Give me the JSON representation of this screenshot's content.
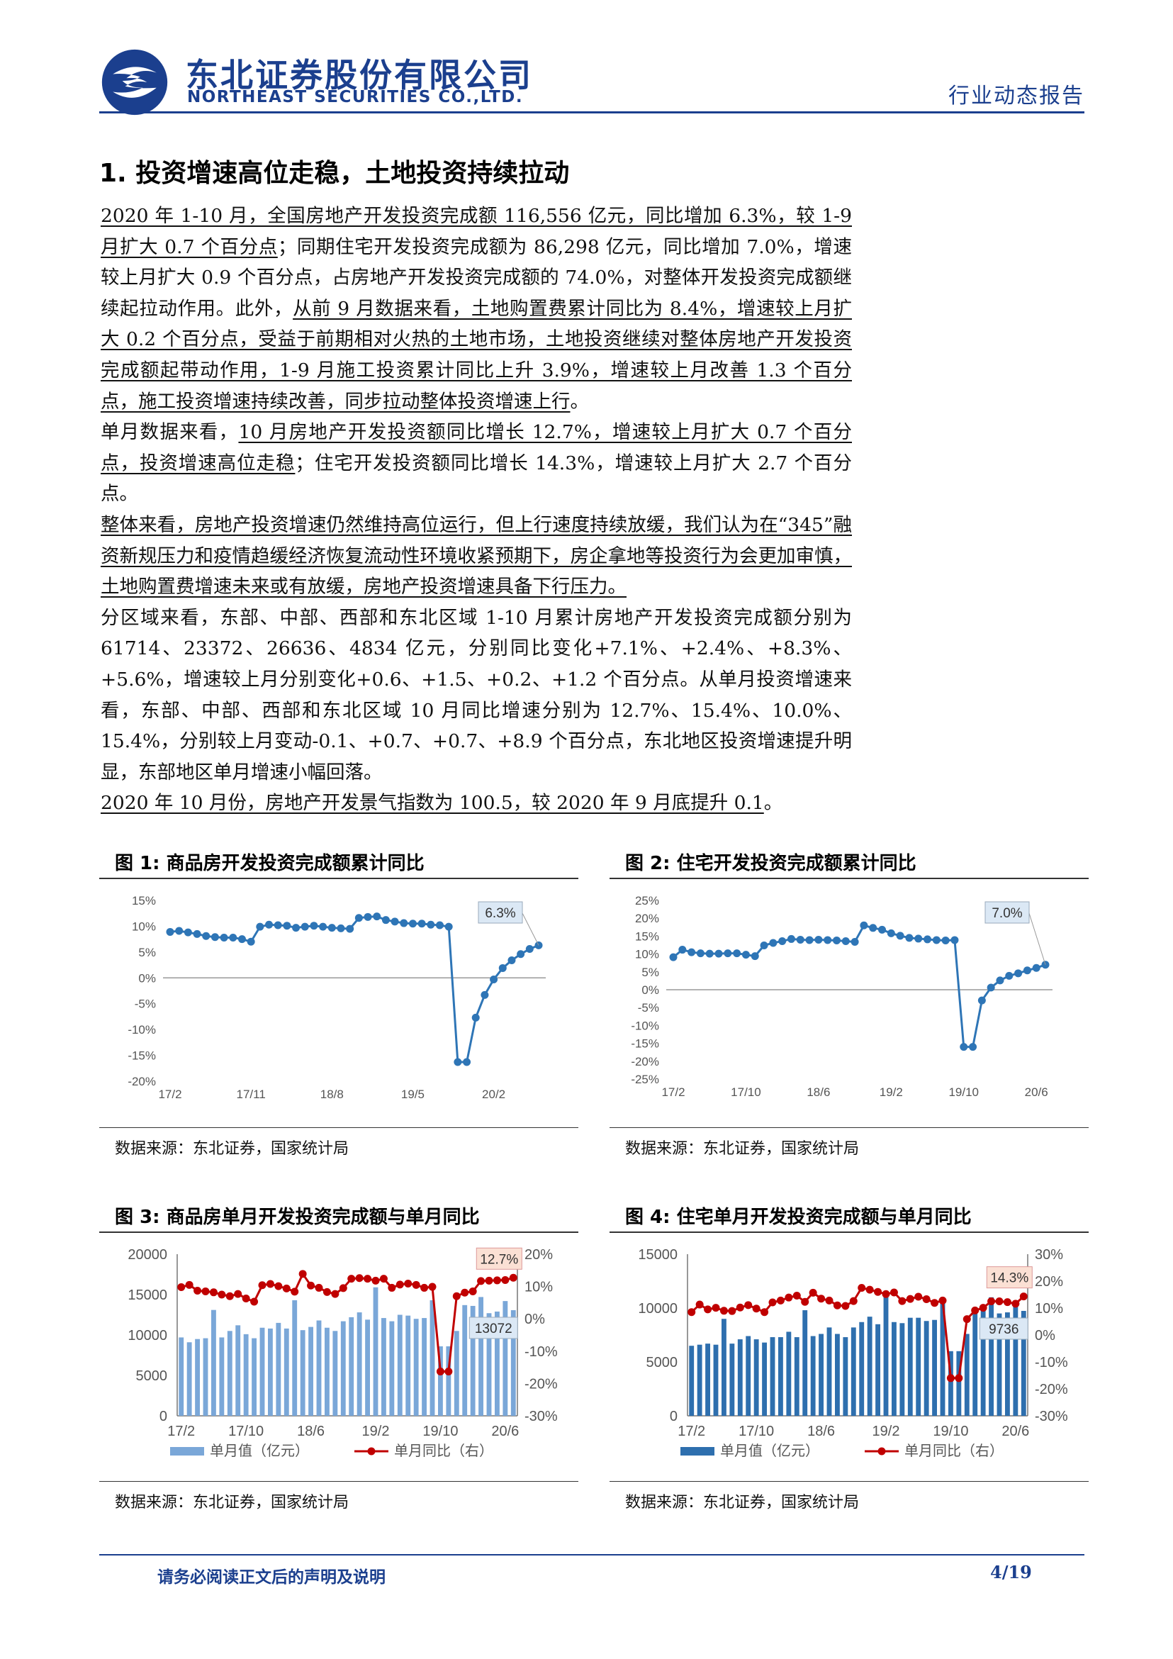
{
  "header": {
    "company_cn": "东北证券股份有限公司",
    "company_en": "NORTHEAST SECURITIES CO.,LTD.",
    "report_type": "行业动态报告",
    "brand_color": "#1b3f8e"
  },
  "section": {
    "title": "1.  投资增速高位走稳，土地投资持续拉动"
  },
  "paragraphs": {
    "p1_u1": "2020 年 1-10 月，全国房地产开发投资完成额 116,556 亿元，同比增加 6.3%，较 1-9 月扩大 0.7 个百分点",
    "p1_t1": "；同期住宅开发投资完成额为 86,298 亿元，同比增加 7.0%，增速较上月扩大 0.9 个百分点，占房地产开发投资完成额的 74.0%，对整体开发投资完成额继续起拉动作用。此外，",
    "p1_u2": "从前 9 月数据来看，土地购置费累计同比为 8.4%，增速较上月扩大 0.2 个百分点，受益于前期相对火热的土地市场，土地投资继续对整体房地产开发投资完成额起带动作用，1-9 月施工投资累计同比上升 3.9%，增速较上月改善 1.3 个百分点，施工投资增速持续改善，同步拉动整体投资增速上行",
    "p1_t2": "。",
    "p2_t1": "单月数据来看，",
    "p2_u1": "10 月房地产开发投资额同比增长 12.7%，增速较上月扩大 0.7 个百分点，投资增速高位走稳",
    "p2_t2": "；住宅开发投资额同比增长 14.3%，增速较上月扩大 2.7 个百分点。",
    "p3_u1": "整体来看，房地产投资增速仍然维持高位运行，但上行速度持续放缓，我们认为在“345”融资新规压力和疫情趋缓经济恢复流动性环境收紧预期下，房企拿地等投资行为会更加审慎，土地购置费增速未来或有放缓，房地产投资增速具备下行压力。",
    "p4": "分区域来看，东部、中部、西部和东北区域 1-10 月累计房地产开发投资完成额分别为 61714、23372、26636、4834 亿元，分别同比变化+7.1%、+2.4%、+8.3%、+5.6%，增速较上月分别变化+0.6、+1.5、+0.2、+1.2 个百分点。从单月投资增速来看，东部、中部、西部和东北区域 10 月同比增速分别为 12.7%、15.4%、10.0%、15.4%，分别较上月变动-0.1、+0.7、+0.7、+8.9 个百分点，东北地区投资增速提升明显，东部地区单月增速小幅回落。",
    "p5_u1": "2020 年 10 月份，房地产开发景气指数为 100.5，较 2020 年 9 月底提升 0.1",
    "p5_t1": "。"
  },
  "figures": [
    {
      "title": "图 1:  商品房开发投资完成额累计同比",
      "source": "数据来源：东北证券，国家统计局"
    },
    {
      "title": "图 2:  住宅开发投资完成额累计同比",
      "source": "数据来源：东北证券，国家统计局"
    },
    {
      "title": "图 3:  商品房单月开发投资完成额与单月同比",
      "source": "数据来源：东北证券，国家统计局"
    },
    {
      "title": "图 4:  住宅单月开发投资完成额与单月同比",
      "source": "数据来源：东北证券，国家统计局"
    }
  ],
  "chart_data": [
    {
      "type": "line",
      "yticks": [
        "15%",
        "10%",
        "5%",
        "0%",
        "-5%",
        "-10%",
        "-15%",
        "-20%"
      ],
      "ylim": [
        -20,
        15
      ],
      "xticks": [
        "17/2",
        "17/11",
        "18/8",
        "19/5",
        "20/2"
      ],
      "callout": "6.3%",
      "series": [
        {
          "color": "#2e75b6",
          "values": [
            8.9,
            9.1,
            8.8,
            8.5,
            8.1,
            7.9,
            7.8,
            7.8,
            7.5,
            7.0,
            9.9,
            10.3,
            10.2,
            10.1,
            9.7,
            9.9,
            10.1,
            9.9,
            9.7,
            9.6,
            9.5,
            11.6,
            11.8,
            11.9,
            11.2,
            10.9,
            10.6,
            10.5,
            10.5,
            10.3,
            10.2,
            9.9,
            -16.3,
            -16.3,
            -7.7,
            -3.3,
            -0.3,
            1.9,
            3.4,
            4.6,
            5.6,
            6.3
          ]
        }
      ]
    },
    {
      "type": "line",
      "yticks": [
        "25%",
        "20%",
        "15%",
        "10%",
        "5%",
        "0%",
        "-5%",
        "-10%",
        "-15%",
        "-20%",
        "-25%"
      ],
      "ylim": [
        -25,
        25
      ],
      "xticks": [
        "17/2",
        "17/10",
        "18/6",
        "19/2",
        "19/10",
        "20/6"
      ],
      "callout": "7.0%",
      "series": [
        {
          "color": "#2e75b6",
          "values": [
            9.1,
            11.2,
            10.5,
            10.2,
            10.1,
            10.1,
            10.2,
            10.2,
            9.8,
            9.4,
            12.4,
            13.1,
            13.6,
            14.2,
            14.0,
            13.9,
            14.0,
            13.9,
            13.8,
            13.6,
            13.4,
            18.0,
            17.3,
            16.8,
            15.8,
            15.1,
            14.5,
            14.3,
            14.1,
            13.9,
            13.8,
            13.9,
            -16.0,
            -16.0,
            -3.0,
            0.6,
            2.6,
            3.9,
            4.6,
            5.4,
            6.1,
            7.0
          ]
        }
      ]
    },
    {
      "type": "bar",
      "yticks_left": [
        "20000",
        "15000",
        "10000",
        "5000",
        "0"
      ],
      "yticks_right": [
        "20%",
        "10%",
        "0%",
        "-10%",
        "-20%",
        "-30%"
      ],
      "ylim_left": [
        0,
        20000
      ],
      "ylim_right": [
        -30,
        20
      ],
      "xticks": [
        "17/2",
        "17/10",
        "18/6",
        "19/2",
        "19/10",
        "20/6"
      ],
      "legend": [
        "单月值（亿元）",
        "单月同比（右）"
      ],
      "callout_line": "12.7%",
      "callout_bar": "13072",
      "series": [
        {
          "name": "单月值（亿元）",
          "color": "#7aa7d8",
          "values": [
            9700,
            9100,
            9500,
            9600,
            13100,
            9700,
            10500,
            11200,
            10100,
            9600,
            10900,
            10800,
            11500,
            10800,
            14300,
            10600,
            11000,
            11800,
            10900,
            10500,
            11700,
            12200,
            12800,
            11900,
            15900,
            12100,
            11700,
            12500,
            12400,
            12000,
            12100,
            14300,
            8600,
            8600,
            10500,
            13700,
            13600,
            14700,
            12700,
            12900,
            14200,
            13072
          ]
        },
        {
          "name": "单月同比（右）",
          "color": "#c00000",
          "values": [
            9.8,
            10.5,
            8.7,
            8.5,
            8.2,
            7.5,
            7.0,
            7.7,
            6.3,
            5.3,
            10.4,
            10.8,
            10.1,
            9.4,
            8.4,
            13.9,
            10.3,
            9.6,
            8.3,
            7.7,
            9.5,
            12.4,
            12.6,
            12.4,
            11.8,
            12.4,
            9.6,
            10.6,
            10.9,
            10.5,
            9.6,
            9.9,
            -16.3,
            -16.3,
            7.0,
            8.1,
            8.5,
            11.7,
            11.8,
            11.9,
            12.0,
            12.7
          ]
        }
      ]
    },
    {
      "type": "bar",
      "yticks_left": [
        "15000",
        "10000",
        "5000",
        "0"
      ],
      "yticks_right": [
        "30%",
        "20%",
        "10%",
        "0%",
        "-10%",
        "-20%",
        "-30%"
      ],
      "ylim_left": [
        0,
        15000
      ],
      "ylim_right": [
        -30,
        30
      ],
      "xticks": [
        "17/2",
        "17/10",
        "18/6",
        "19/2",
        "19/10",
        "20/6"
      ],
      "legend": [
        "单月值（亿元）",
        "单月同比（右）"
      ],
      "callout_line": "14.3%",
      "callout_bar": "9736",
      "series": [
        {
          "name": "单月值（亿元）",
          "color": "#2e6fae",
          "values": [
            6500,
            6600,
            6700,
            6600,
            9000,
            6700,
            7100,
            7400,
            7100,
            6800,
            7300,
            7300,
            7800,
            7300,
            9800,
            7400,
            7600,
            8200,
            7600,
            7300,
            8200,
            8700,
            9200,
            8500,
            11400,
            8700,
            8600,
            9100,
            9100,
            8800,
            8900,
            10600,
            6000,
            6000,
            7600,
            10000,
            10100,
            11000,
            9500,
            9600,
            10700,
            9736
          ]
        },
        {
          "name": "单月同比（右）",
          "color": "#c00000",
          "values": [
            8.5,
            11.3,
            9.5,
            10.1,
            9.0,
            8.9,
            10.2,
            11.1,
            9.8,
            8.5,
            12.1,
            12.8,
            13.9,
            14.6,
            12.3,
            15.7,
            13.5,
            12.8,
            11.0,
            10.8,
            12.6,
            17.5,
            16.8,
            16.0,
            15.2,
            15.8,
            12.6,
            13.4,
            14.2,
            13.3,
            11.9,
            12.8,
            -16.0,
            -16.0,
            5.9,
            9.1,
            10.1,
            12.5,
            12.5,
            12.2,
            11.6,
            14.3
          ]
        }
      ]
    }
  ],
  "footer": {
    "disclaimer": "请务必阅读正文后的声明及说明",
    "page": "4/19"
  }
}
